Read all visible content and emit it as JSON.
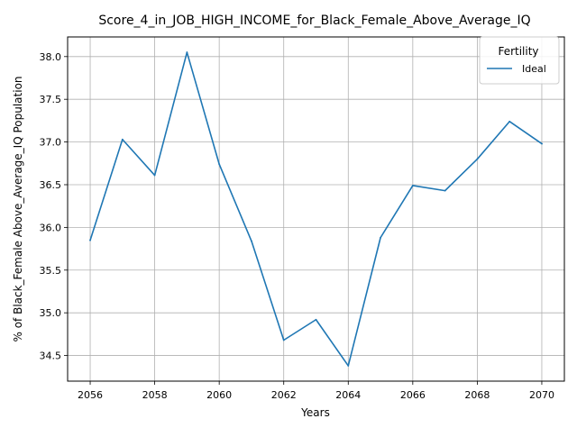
{
  "chart_data": {
    "type": "line",
    "title": "Score_4_in_JOB_HIGH_INCOME_for_Black_Female_Above_Average_IQ",
    "xlabel": "Years",
    "ylabel": "% of Black_Female Above_Average_IQ Population",
    "x": [
      2056,
      2057,
      2058,
      2059,
      2060,
      2061,
      2062,
      2063,
      2064,
      2065,
      2066,
      2067,
      2068,
      2069,
      2070
    ],
    "series": [
      {
        "name": "Ideal",
        "color": "#1f77b4",
        "values": [
          35.85,
          37.03,
          36.61,
          38.05,
          36.74,
          35.84,
          34.68,
          34.92,
          34.38,
          35.88,
          36.49,
          36.43,
          36.8,
          37.24,
          36.98
        ]
      }
    ],
    "xlim": [
      2055.3,
      2070.7
    ],
    "ylim": [
      34.2,
      38.23
    ],
    "xticks": [
      2056,
      2058,
      2060,
      2062,
      2064,
      2066,
      2068,
      2070
    ],
    "yticks": [
      34.5,
      35.0,
      35.5,
      36.0,
      36.5,
      37.0,
      37.5,
      38.0
    ],
    "ytick_labels": [
      "34.5",
      "35.0",
      "35.5",
      "36.0",
      "36.5",
      "37.0",
      "37.5",
      "38.0"
    ],
    "grid": true,
    "legend": {
      "title": "Fertility",
      "placement": "top-right"
    }
  }
}
